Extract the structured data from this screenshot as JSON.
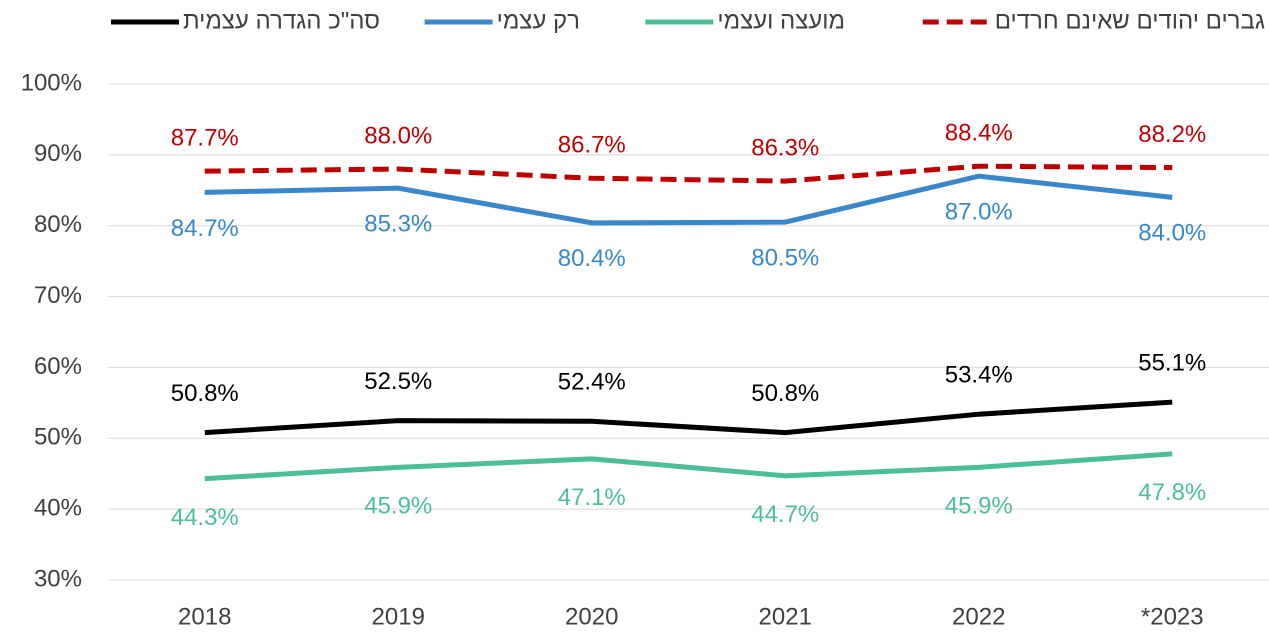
{
  "chart_data": {
    "type": "line",
    "categories": [
      "2018",
      "2019",
      "2020",
      "2021",
      "2022",
      "*2023"
    ],
    "ylim": [
      30,
      100
    ],
    "yticks": [
      {
        "value": 30,
        "label": "30%"
      },
      {
        "value": 40,
        "label": "40%"
      },
      {
        "value": 50,
        "label": "50%"
      },
      {
        "value": 60,
        "label": "60%"
      },
      {
        "value": 70,
        "label": "70%"
      },
      {
        "value": 80,
        "label": "80%"
      },
      {
        "value": 90,
        "label": "90%"
      },
      {
        "value": 100,
        "label": "100%"
      }
    ],
    "grid": true,
    "legend": "top",
    "series": [
      {
        "name": "סה\"כ הגדרה עצמית",
        "color": "#000000",
        "values": [
          50.8,
          52.5,
          52.4,
          50.8,
          53.4,
          55.1
        ],
        "value_labels": [
          "50.8%",
          "52.5%",
          "52.4%",
          "50.8%",
          "53.4%",
          "55.1%"
        ]
      },
      {
        "name": "רק עצמי",
        "color": "#3a87cc",
        "values": [
          84.7,
          85.3,
          80.4,
          80.5,
          87.0,
          84.0
        ],
        "value_labels": [
          "84.7%",
          "85.3%",
          "80.4%",
          "80.5%",
          "87.0%",
          "84.0%"
        ]
      },
      {
        "name": "מועצה ועצמי",
        "color": "#4dbf96",
        "values": [
          44.3,
          45.9,
          47.1,
          44.7,
          45.9,
          47.8
        ],
        "value_labels": [
          "44.3%",
          "45.9%",
          "47.1%",
          "44.7%",
          "45.9%",
          "47.8%"
        ]
      },
      {
        "name": "גברים יהודים שאינם חרדים",
        "color": "#c00000",
        "dashed": true,
        "values": [
          87.7,
          88.0,
          86.7,
          86.3,
          88.4,
          88.2
        ],
        "value_labels": [
          "87.7%",
          "88.0%",
          "86.7%",
          "86.3%",
          "88.4%",
          "88.2%"
        ]
      }
    ]
  }
}
